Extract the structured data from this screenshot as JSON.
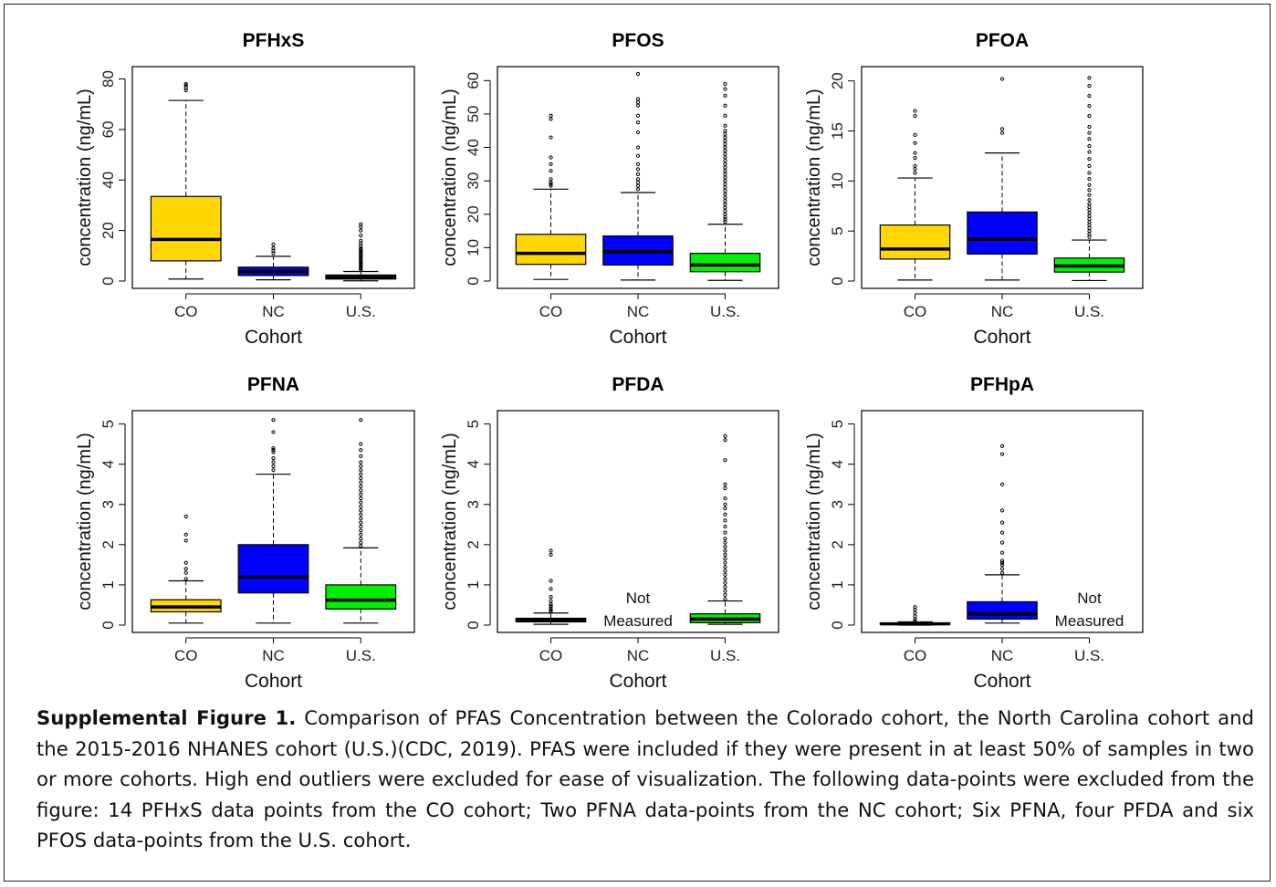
{
  "caption": {
    "label": "Supplemental Figure 1.",
    "text": " Comparison of PFAS Concentration between the Colorado cohort, the North Carolina cohort and the 2015-2016 NHANES cohort (U.S.)(CDC, 2019). PFAS were included if they were present in at least 50% of samples in two or more cohorts. High end outliers were excluded for ease of visualization. The following data-points were excluded from the figure: 14 PFHxS data points from the CO cohort; Two PFNA data-points from the NC cohort; Six PFNA, four PFDA and six PFOS data-points from the U.S. cohort."
  },
  "colors": {
    "CO": "#FFD700",
    "NC": "#0000FF",
    "U.S.": "#00EE00"
  },
  "not_measured_label": [
    "Not",
    "Measured"
  ],
  "chart_data": [
    {
      "type": "box",
      "title": "PFHxS",
      "xlabel": "Cohort",
      "ylabel": "concentration (ng/mL)",
      "categories": [
        "CO",
        "NC",
        "U.S."
      ],
      "ylim": [
        0,
        82
      ],
      "yticks": [
        0,
        20,
        40,
        60,
        80
      ],
      "boxes": [
        {
          "cohort": "CO",
          "min": 0.8,
          "q1": 8,
          "median": 16.5,
          "q3": 33.5,
          "max": 71.5,
          "outliers": [
            75.5,
            76.5,
            77.5,
            78
          ]
        },
        {
          "cohort": "NC",
          "min": 0.5,
          "q1": 2.2,
          "median": 3.8,
          "q3": 5.5,
          "max": 9.8,
          "outliers": [
            11,
            12,
            13,
            14.5
          ]
        },
        {
          "cohort": "U.S.",
          "min": 0.1,
          "q1": 0.8,
          "median": 1.5,
          "q3": 2.4,
          "max": 3.8,
          "outliers": [
            4.5,
            5,
            5.5,
            6,
            6.5,
            7,
            7.5,
            8,
            8.5,
            9,
            9.5,
            10,
            10.5,
            11,
            11.5,
            12,
            12.5,
            13,
            14,
            15,
            16,
            18,
            20,
            21.5,
            22.5
          ]
        }
      ]
    },
    {
      "type": "box",
      "title": "PFOS",
      "xlabel": "Cohort",
      "ylabel": "concentration (ng/mL)",
      "categories": [
        "CO",
        "NC",
        "U.S."
      ],
      "ylim": [
        0,
        62
      ],
      "yticks": [
        0,
        10,
        20,
        30,
        40,
        50,
        60
      ],
      "boxes": [
        {
          "cohort": "CO",
          "min": 0.5,
          "q1": 5,
          "median": 8.3,
          "q3": 14,
          "max": 27.5,
          "outliers": [
            28.5,
            29,
            29.5,
            30.5,
            33,
            35,
            37,
            43,
            48.5,
            49.5
          ]
        },
        {
          "cohort": "NC",
          "min": 0.3,
          "q1": 4.8,
          "median": 8.8,
          "q3": 13.5,
          "max": 26.5,
          "outliers": [
            27.5,
            28.5,
            29.5,
            30.5,
            32,
            33.5,
            35,
            37.5,
            40,
            44.5,
            47.5,
            49.5,
            52.5,
            53.5,
            54.5,
            62
          ]
        },
        {
          "cohort": "U.S.",
          "min": 0.2,
          "q1": 2.8,
          "median": 4.8,
          "q3": 8.3,
          "max": 17,
          "outliers": [
            17.8,
            18.5,
            19.2,
            20,
            21,
            22,
            23,
            24,
            25,
            26,
            27,
            28,
            29,
            30,
            31,
            32,
            33,
            34,
            35,
            36,
            37,
            38,
            39,
            40,
            41,
            42,
            43,
            44,
            45,
            46.5,
            49.5,
            52.5,
            55.5,
            57.5,
            59
          ]
        }
      ]
    },
    {
      "type": "box",
      "title": "PFOA",
      "xlabel": "Cohort",
      "ylabel": "concentration (ng/mL)",
      "categories": [
        "CO",
        "NC",
        "U.S."
      ],
      "ylim": [
        0,
        20.7
      ],
      "yticks": [
        0,
        5,
        10,
        15,
        20
      ],
      "boxes": [
        {
          "cohort": "CO",
          "min": 0.1,
          "q1": 2.2,
          "median": 3.2,
          "q3": 5.6,
          "max": 10.3,
          "outliers": [
            10.8,
            11.2,
            11.5,
            12.3,
            12.8,
            13.8,
            14.6,
            16.5,
            17
          ]
        },
        {
          "cohort": "NC",
          "min": 0.1,
          "q1": 2.7,
          "median": 4.2,
          "q3": 6.9,
          "max": 12.8,
          "outliers": [
            14.8,
            15.2,
            20.2
          ]
        },
        {
          "cohort": "U.S.",
          "min": 0.05,
          "q1": 0.9,
          "median": 1.5,
          "q3": 2.3,
          "max": 4.1,
          "outliers": [
            4.4,
            4.7,
            5,
            5.3,
            5.6,
            5.9,
            6.2,
            6.5,
            6.8,
            7.1,
            7.4,
            7.7,
            8.1,
            8.6,
            9.1,
            9.6,
            10.2,
            10.8,
            11.5,
            12.2,
            12.9,
            13.5,
            14.2,
            14.8,
            15.4,
            16.5,
            17.5,
            18.5,
            19.5,
            20.3
          ]
        }
      ]
    },
    {
      "type": "box",
      "title": "PFNA",
      "xlabel": "Cohort",
      "ylabel": "concentration (ng/mL)",
      "categories": [
        "CO",
        "NC",
        "U.S."
      ],
      "ylim": [
        0,
        5.15
      ],
      "yticks": [
        0,
        1,
        2,
        3,
        4,
        5
      ],
      "boxes": [
        {
          "cohort": "CO",
          "min": 0.05,
          "q1": 0.33,
          "median": 0.45,
          "q3": 0.63,
          "max": 1.1,
          "outliers": [
            1.15,
            1.3,
            1.4,
            1.55,
            2.1,
            2.25,
            2.7
          ]
        },
        {
          "cohort": "NC",
          "min": 0.05,
          "q1": 0.8,
          "median": 1.2,
          "q3": 2.0,
          "max": 3.75,
          "outliers": [
            3.85,
            3.95,
            4.05,
            4.15,
            4.3,
            4.35,
            4.4,
            4.8,
            5.1
          ]
        },
        {
          "cohort": "U.S.",
          "min": 0.05,
          "q1": 0.4,
          "median": 0.62,
          "q3": 1.0,
          "max": 1.92,
          "outliers": [
            1.97,
            2.05,
            2.15,
            2.25,
            2.35,
            2.45,
            2.55,
            2.65,
            2.75,
            2.85,
            2.95,
            3.05,
            3.15,
            3.25,
            3.35,
            3.45,
            3.55,
            3.65,
            3.75,
            3.85,
            3.95,
            4.05,
            4.2,
            4.35,
            4.5,
            5.1
          ]
        }
      ]
    },
    {
      "type": "box",
      "title": "PFDA",
      "xlabel": "Cohort",
      "ylabel": "concentration (ng/mL)",
      "categories": [
        "CO",
        "NC",
        "U.S."
      ],
      "ylim": [
        0,
        5.15
      ],
      "yticks": [
        0,
        1,
        2,
        3,
        4,
        5
      ],
      "not_measured": [
        "NC"
      ],
      "boxes": [
        {
          "cohort": "CO",
          "min": 0.02,
          "q1": 0.08,
          "median": 0.12,
          "q3": 0.17,
          "max": 0.3,
          "outliers": [
            0.33,
            0.37,
            0.42,
            0.47,
            0.52,
            0.6,
            0.7,
            0.9,
            1.1,
            1.75,
            1.85
          ]
        },
        {
          "cohort": "U.S.",
          "min": 0.02,
          "q1": 0.06,
          "median": 0.15,
          "q3": 0.28,
          "max": 0.6,
          "outliers": [
            0.65,
            0.75,
            0.85,
            0.95,
            1.05,
            1.15,
            1.25,
            1.35,
            1.45,
            1.55,
            1.65,
            1.75,
            1.85,
            1.95,
            2.05,
            2.15,
            2.3,
            2.45,
            2.6,
            2.75,
            2.9,
            3.0,
            3.15,
            3.4,
            3.5,
            4.1,
            4.6,
            4.7
          ]
        }
      ]
    },
    {
      "type": "box",
      "title": "PFHpA",
      "xlabel": "Cohort",
      "ylabel": "concentration (ng/mL)",
      "categories": [
        "CO",
        "NC",
        "U.S."
      ],
      "ylim": [
        0,
        5.15
      ],
      "yticks": [
        0,
        1,
        2,
        3,
        4,
        5
      ],
      "not_measured": [
        "U.S."
      ],
      "boxes": [
        {
          "cohort": "CO",
          "min": 0.0,
          "q1": 0.02,
          "median": 0.03,
          "q3": 0.05,
          "max": 0.08,
          "outliers": [
            0.1,
            0.15,
            0.22,
            0.3,
            0.38,
            0.45
          ]
        },
        {
          "cohort": "NC",
          "min": 0.05,
          "q1": 0.15,
          "median": 0.28,
          "q3": 0.58,
          "max": 1.25,
          "outliers": [
            1.3,
            1.4,
            1.5,
            1.55,
            1.6,
            1.8,
            2.05,
            2.3,
            2.55,
            2.85,
            3.5,
            4.25,
            4.45
          ]
        }
      ]
    }
  ]
}
